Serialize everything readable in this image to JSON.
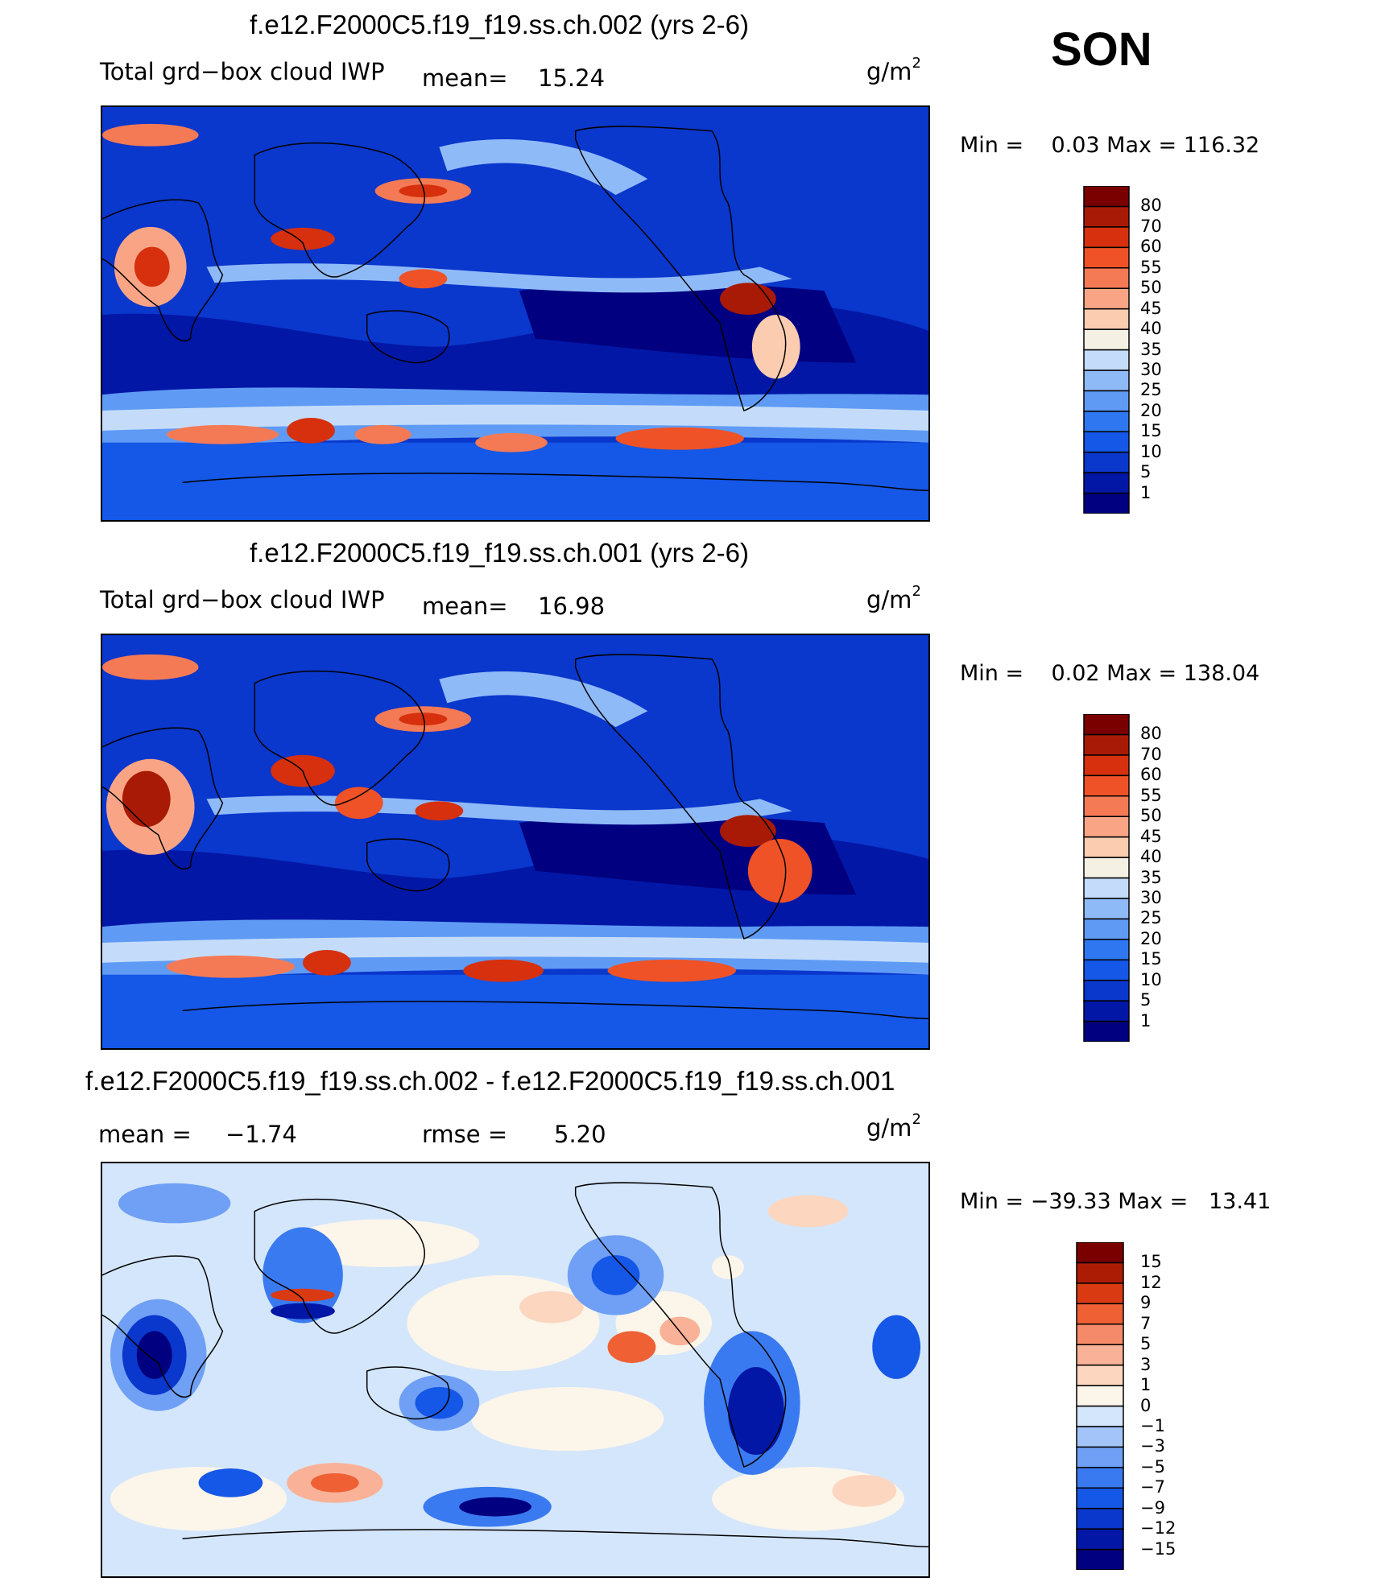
{
  "season": "SON",
  "panels": [
    {
      "title": "f.e12.F2000C5.f19_f19.ss.ch.002 (yrs 2-6)",
      "variable": "Total grd−box cloud IWP",
      "mean_label": "mean=",
      "mean_value": "15.24",
      "units": "g/m",
      "units_power": "2",
      "min_max": "Min =    0.03 Max = 116.32",
      "colorbar_ticks": [
        "80",
        "70",
        "60",
        "55",
        "50",
        "45",
        "40",
        "35",
        "30",
        "25",
        "20",
        "15",
        "10",
        "5",
        "1"
      ],
      "colors": [
        "#000080",
        "#0317a6",
        "#0a37cc",
        "#1557e6",
        "#2f77f0",
        "#5f9bf5",
        "#8fbaf8",
        "#c4dcfa",
        "#f4f0e4",
        "#fcccb0",
        "#f9a585",
        "#f47a55",
        "#ef5226",
        "#d6300e",
        "#a81a05",
        "#7a0000"
      ]
    },
    {
      "title": "f.e12.F2000C5.f19_f19.ss.ch.001 (yrs 2-6)",
      "variable": "Total grd−box cloud IWP",
      "mean_label": "mean=",
      "mean_value": "16.98",
      "units": "g/m",
      "units_power": "2",
      "min_max": "Min =    0.02 Max = 138.04",
      "colorbar_ticks": [
        "80",
        "70",
        "60",
        "55",
        "50",
        "45",
        "40",
        "35",
        "30",
        "25",
        "20",
        "15",
        "10",
        "5",
        "1"
      ],
      "colors": [
        "#000080",
        "#0317a6",
        "#0a37cc",
        "#1557e6",
        "#2f77f0",
        "#5f9bf5",
        "#8fbaf8",
        "#c4dcfa",
        "#f4f0e4",
        "#fcccb0",
        "#f9a585",
        "#f47a55",
        "#ef5226",
        "#d6300e",
        "#a81a05",
        "#7a0000"
      ]
    },
    {
      "title": "f.e12.F2000C5.f19_f19.ss.ch.002 - f.e12.F2000C5.f19_f19.ss.ch.001",
      "mean_label": "mean =",
      "mean_value": "−1.74",
      "rmse_label": "rmse =",
      "rmse_value": "5.20",
      "units": "g/m",
      "units_power": "2",
      "min_max": "Min = −39.33 Max =   13.41",
      "colorbar_ticks": [
        "15",
        "12",
        "9",
        "7",
        "5",
        "3",
        "1",
        "0",
        "−1",
        "−3",
        "−5",
        "−7",
        "−9",
        "−12",
        "−15"
      ],
      "colors": [
        "#000080",
        "#0317a6",
        "#0a37cc",
        "#1557e6",
        "#3a7af0",
        "#6fa0f5",
        "#a3c4f8",
        "#d4e6fb",
        "#fbf5ea",
        "#fcd6bf",
        "#f9b297",
        "#f48a69",
        "#ef6035",
        "#d93a12",
        "#ac1c05",
        "#7a0000"
      ]
    }
  ]
}
